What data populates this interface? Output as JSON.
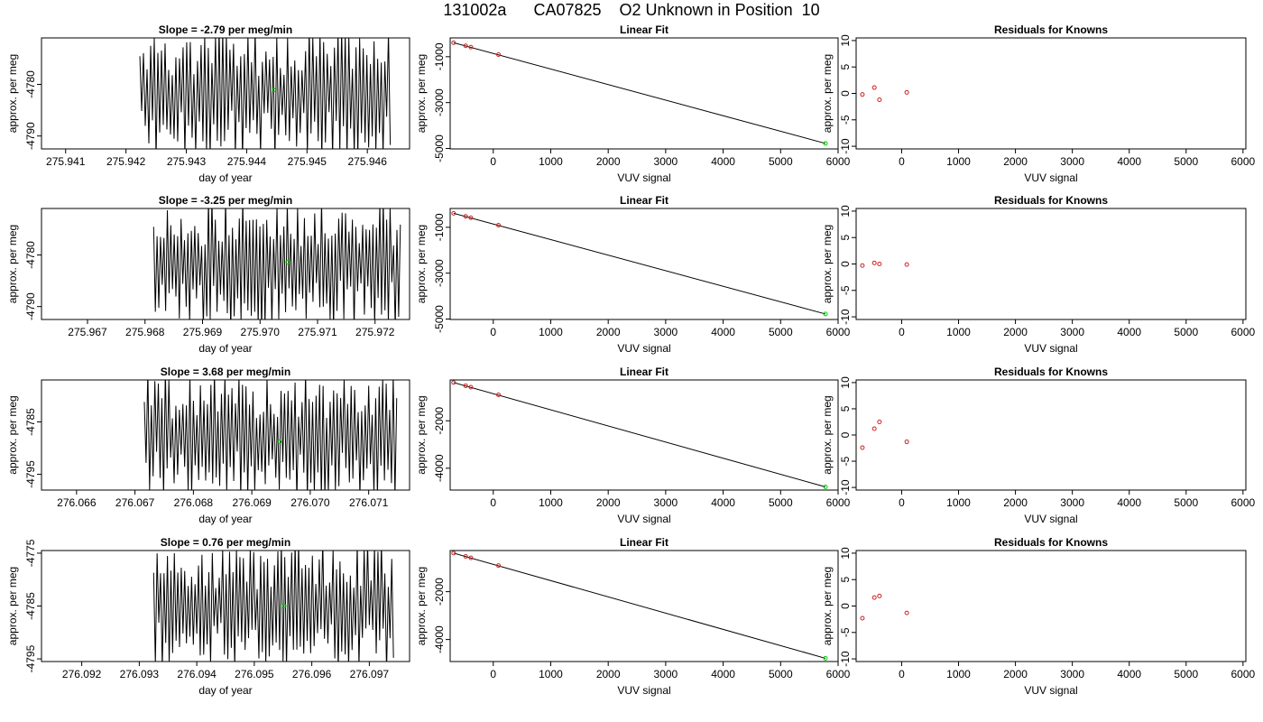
{
  "figure": {
    "title": "131002a      CA07825    O2 Unknown in Position  10"
  },
  "chart_data": [
    {
      "type": "line",
      "row": 0,
      "col": 0,
      "title": "Slope =  -2.79  per meg/min",
      "xlabel": "day of year",
      "ylabel": "approx. per meg",
      "xlim": [
        275.9406,
        275.9467
      ],
      "ylim": [
        -4792.5,
        -4771.0
      ],
      "xticks": [
        275.941,
        275.942,
        275.943,
        275.944,
        275.945,
        275.946
      ],
      "xtick_labels": [
        "275.941",
        "275.942",
        "275.943",
        "275.944",
        "275.945",
        "275.946"
      ],
      "yticks": [
        -4790,
        -4780
      ],
      "ytick_labels": [
        "-4790",
        "-4780"
      ],
      "trace": {
        "x_start": 275.94223,
        "x_end": 275.94638,
        "y_center": -4781.0,
        "y_min": -4792.5,
        "y_max": -4771.0,
        "count": 140
      },
      "marker": {
        "x": 275.94445,
        "y": -4781.1,
        "color": "#00cc00"
      }
    },
    {
      "type": "scatter",
      "row": 0,
      "col": 1,
      "title": "Linear Fit",
      "xlabel": "VUV signal",
      "ylabel": "approx. per meg",
      "xlim": [
        -750,
        6000
      ],
      "ylim": [
        -5020,
        -180
      ],
      "xticks": [
        0,
        1000,
        2000,
        3000,
        4000,
        5000,
        6000
      ],
      "xtick_labels": [
        "0",
        "1000",
        "2000",
        "3000",
        "4000",
        "5000",
        "6000"
      ],
      "yticks": [
        -5000,
        -3000,
        -1000
      ],
      "ytick_labels": [
        "-5000",
        "-3000",
        "-1000"
      ],
      "fit_line": {
        "x": [
          -690,
          5780
        ],
        "y": [
          -390,
          -4781
        ]
      },
      "knowns": {
        "x": [
          -690,
          -480,
          -390,
          90
        ],
        "y": [
          -390,
          -525,
          -585,
          -908
        ],
        "color": "#cc2222"
      },
      "unknown": {
        "x": 5780,
        "y": -4781,
        "color": "#00cc00"
      }
    },
    {
      "type": "scatter",
      "row": 0,
      "col": 2,
      "title": "Residuals for Knowns",
      "xlabel": "VUV signal",
      "ylabel": "approx. per meg",
      "xlim": [
        -800,
        6050
      ],
      "ylim": [
        -10.5,
        10.5
      ],
      "xticks": [
        0,
        1000,
        2000,
        3000,
        4000,
        5000,
        6000
      ],
      "xtick_labels": [
        "0",
        "1000",
        "2000",
        "3000",
        "4000",
        "5000",
        "6000"
      ],
      "yticks": [
        -10,
        -5,
        0,
        5,
        10
      ],
      "ytick_labels": [
        "-10",
        "-5",
        "0",
        "5",
        "10"
      ],
      "points": {
        "x": [
          -690,
          -480,
          -390,
          90
        ],
        "y": [
          -0.2,
          1.1,
          -1.2,
          0.2
        ],
        "color": "#cc2222"
      }
    },
    {
      "type": "line",
      "row": 1,
      "col": 0,
      "title": "Slope =  -3.25  per meg/min",
      "xlabel": "day of year",
      "ylabel": "approx. per meg",
      "xlim": [
        275.9662,
        275.9726
      ],
      "ylim": [
        -4792.5,
        -4771.0
      ],
      "xticks": [
        275.967,
        275.968,
        275.969,
        275.97,
        275.971,
        275.972
      ],
      "xtick_labels": [
        "275.967",
        "275.968",
        "275.969",
        "275.970",
        "275.971",
        "275.972"
      ],
      "yticks": [
        -4790,
        -4780
      ],
      "ytick_labels": [
        "-4790",
        "-4780"
      ],
      "trace": {
        "x_start": 275.96815,
        "x_end": 275.97244,
        "y_center": -4781.0,
        "y_min": -4792.5,
        "y_max": -4771.0,
        "count": 145
      },
      "marker": {
        "x": 275.97048,
        "y": -4781.4,
        "color": "#00cc00"
      }
    },
    {
      "type": "scatter",
      "row": 1,
      "col": 1,
      "title": "Linear Fit",
      "xlabel": "VUV signal",
      "ylabel": "approx. per meg",
      "xlim": [
        -750,
        6000
      ],
      "ylim": [
        -5020,
        -180
      ],
      "xticks": [
        0,
        1000,
        2000,
        3000,
        4000,
        5000,
        6000
      ],
      "xtick_labels": [
        "0",
        "1000",
        "2000",
        "3000",
        "4000",
        "5000",
        "6000"
      ],
      "yticks": [
        -5000,
        -3000,
        -1000
      ],
      "ytick_labels": [
        "-5000",
        "-3000",
        "-1000"
      ],
      "fit_line": {
        "x": [
          -690,
          5780
        ],
        "y": [
          -390,
          -4781
        ]
      },
      "knowns": {
        "x": [
          -690,
          -480,
          -390,
          90
        ],
        "y": [
          -390,
          -525,
          -585,
          -908
        ],
        "color": "#cc2222"
      },
      "unknown": {
        "x": 5780,
        "y": -4781,
        "color": "#00cc00"
      }
    },
    {
      "type": "scatter",
      "row": 1,
      "col": 2,
      "title": "Residuals for Knowns",
      "xlabel": "VUV signal",
      "ylabel": "approx. per meg",
      "xlim": [
        -800,
        6050
      ],
      "ylim": [
        -10.5,
        10.5
      ],
      "xticks": [
        0,
        1000,
        2000,
        3000,
        4000,
        5000,
        6000
      ],
      "xtick_labels": [
        "0",
        "1000",
        "2000",
        "3000",
        "4000",
        "5000",
        "6000"
      ],
      "yticks": [
        -10,
        -5,
        0,
        5,
        10
      ],
      "ytick_labels": [
        "-10",
        "-5",
        "0",
        "5",
        "10"
      ],
      "points": {
        "x": [
          -690,
          -480,
          -390,
          90
        ],
        "y": [
          -0.3,
          0.2,
          0.0,
          -0.1
        ],
        "color": "#cc2222"
      }
    },
    {
      "type": "line",
      "row": 2,
      "col": 0,
      "title": "Slope =  3.68  per meg/min",
      "xlabel": "day of year",
      "ylabel": "approx. per meg",
      "xlim": [
        276.0654,
        276.0717
      ],
      "ylim": [
        -4798.0,
        -4777.0
      ],
      "xticks": [
        276.066,
        276.067,
        276.068,
        276.069,
        276.07,
        276.071
      ],
      "xtick_labels": [
        "276.066",
        "276.067",
        "276.068",
        "276.069",
        "276.070",
        "276.071"
      ],
      "yticks": [
        -4795,
        -4785
      ],
      "ytick_labels": [
        "-4795",
        "-4785"
      ],
      "trace": {
        "x_start": 276.06716,
        "x_end": 276.07148,
        "y_center": -4787.5,
        "y_min": -4798.0,
        "y_max": -4777.0,
        "count": 145
      },
      "marker": {
        "x": 276.06947,
        "y": -4788.8,
        "color": "#00cc00"
      }
    },
    {
      "type": "scatter",
      "row": 2,
      "col": 1,
      "title": "Linear Fit",
      "xlabel": "VUV signal",
      "ylabel": "approx. per meg",
      "xlim": [
        -750,
        6000
      ],
      "ylim": [
        -4920,
        -280
      ],
      "xticks": [
        0,
        1000,
        2000,
        3000,
        4000,
        5000,
        6000
      ],
      "xtick_labels": [
        "0",
        "1000",
        "2000",
        "3000",
        "4000",
        "5000",
        "6000"
      ],
      "yticks": [
        -4000,
        -2000
      ],
      "ytick_labels": [
        "-4000",
        "-2000"
      ],
      "fit_line": {
        "x": [
          -690,
          5780
        ],
        "y": [
          -390,
          -4788
        ]
      },
      "knowns": {
        "x": [
          -690,
          -480,
          -390,
          90
        ],
        "y": [
          -390,
          -525,
          -585,
          -908
        ],
        "color": "#cc2222"
      },
      "unknown": {
        "x": 5780,
        "y": -4788,
        "color": "#00cc00"
      }
    },
    {
      "type": "scatter",
      "row": 2,
      "col": 2,
      "title": "Residuals for Knowns",
      "xlabel": "VUV signal",
      "ylabel": "approx. per meg",
      "xlim": [
        -800,
        6050
      ],
      "ylim": [
        -10.5,
        10.5
      ],
      "xticks": [
        0,
        1000,
        2000,
        3000,
        4000,
        5000,
        6000
      ],
      "xtick_labels": [
        "0",
        "1000",
        "2000",
        "3000",
        "4000",
        "5000",
        "6000"
      ],
      "yticks": [
        -10,
        -5,
        0,
        5,
        10
      ],
      "ytick_labels": [
        "-10",
        "-5",
        "0",
        "5",
        "10"
      ],
      "points": {
        "x": [
          -690,
          -480,
          -390,
          90
        ],
        "y": [
          -2.4,
          1.2,
          2.5,
          -1.3
        ],
        "color": "#cc2222"
      }
    },
    {
      "type": "line",
      "row": 3,
      "col": 0,
      "title": "Slope =  0.76  per meg/min",
      "xlabel": "day of year",
      "ylabel": "approx. per meg",
      "xlim": [
        276.0913,
        276.0977
      ],
      "ylim": [
        -4795.5,
        -4774.5
      ],
      "xticks": [
        276.092,
        276.093,
        276.094,
        276.095,
        276.096,
        276.097
      ],
      "xtick_labels": [
        "276.092",
        "276.093",
        "276.094",
        "276.095",
        "276.096",
        "276.097"
      ],
      "yticks": [
        -4795,
        -4785,
        -4775
      ],
      "ytick_labels": [
        "-4795",
        "-4785",
        "-4775"
      ],
      "trace": {
        "x_start": 276.09325,
        "x_end": 276.09742,
        "y_center": -4785.0,
        "y_min": -4795.5,
        "y_max": -4774.5,
        "count": 140
      },
      "marker": {
        "x": 276.09552,
        "y": -4785.0,
        "color": "#00cc00"
      }
    },
    {
      "type": "scatter",
      "row": 3,
      "col": 1,
      "title": "Linear Fit",
      "xlabel": "VUV signal",
      "ylabel": "approx. per meg",
      "xlim": [
        -750,
        6000
      ],
      "ylim": [
        -4920,
        -280
      ],
      "xticks": [
        0,
        1000,
        2000,
        3000,
        4000,
        5000,
        6000
      ],
      "xtick_labels": [
        "0",
        "1000",
        "2000",
        "3000",
        "4000",
        "5000",
        "6000"
      ],
      "yticks": [
        -4000,
        -2000
      ],
      "ytick_labels": [
        "-4000",
        "-2000"
      ],
      "fit_line": {
        "x": [
          -690,
          5780
        ],
        "y": [
          -390,
          -4785
        ]
      },
      "knowns": {
        "x": [
          -690,
          -480,
          -390,
          90
        ],
        "y": [
          -390,
          -525,
          -585,
          -908
        ],
        "color": "#cc2222"
      },
      "unknown": {
        "x": 5780,
        "y": -4785,
        "color": "#00cc00"
      }
    },
    {
      "type": "scatter",
      "row": 3,
      "col": 2,
      "title": "Residuals for Knowns",
      "xlabel": "VUV signal",
      "ylabel": "approx. per meg",
      "xlim": [
        -800,
        6050
      ],
      "ylim": [
        -10.5,
        10.5
      ],
      "xticks": [
        0,
        1000,
        2000,
        3000,
        4000,
        5000,
        6000
      ],
      "xtick_labels": [
        "0",
        "1000",
        "2000",
        "3000",
        "4000",
        "5000",
        "6000"
      ],
      "yticks": [
        -10,
        -5,
        0,
        5,
        10
      ],
      "ytick_labels": [
        "-10",
        "-5",
        "0",
        "5",
        "10"
      ],
      "points": {
        "x": [
          -690,
          -480,
          -390,
          90
        ],
        "y": [
          -2.3,
          1.6,
          1.9,
          -1.3
        ],
        "color": "#cc2222"
      }
    }
  ]
}
